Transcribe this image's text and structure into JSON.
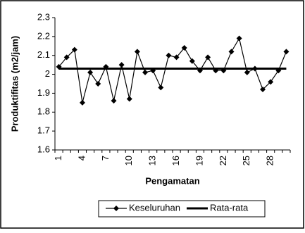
{
  "chart_data": {
    "type": "line",
    "y_label": "Produktifitas (m2/jam)",
    "x_label": "Pengamatan",
    "categories": [
      "1",
      null,
      null,
      "4",
      null,
      null,
      "7",
      null,
      null,
      "10",
      null,
      null,
      "13",
      null,
      null,
      "16",
      null,
      null,
      "19",
      null,
      null,
      "22",
      null,
      null,
      "25",
      null,
      null,
      "28",
      null,
      null
    ],
    "series": [
      {
        "name": "Keseluruhan",
        "color": "#000000",
        "marker": "diamond",
        "values": [
          2.04,
          2.09,
          2.13,
          1.85,
          2.01,
          1.95,
          2.04,
          1.86,
          2.05,
          1.87,
          2.12,
          2.01,
          2.02,
          1.93,
          2.1,
          2.09,
          2.14,
          2.07,
          2.02,
          2.09,
          2.02,
          2.02,
          2.12,
          2.19,
          2.01,
          2.03,
          1.92,
          1.96,
          2.02,
          2.12
        ]
      },
      {
        "name": "Rata-rata",
        "color": "#000000",
        "values": [
          2.03,
          2.03,
          2.03,
          2.03,
          2.03,
          2.03,
          2.03,
          2.03,
          2.03,
          2.03,
          2.03,
          2.03,
          2.03,
          2.03,
          2.03,
          2.03,
          2.03,
          2.03,
          2.03,
          2.03,
          2.03,
          2.03,
          2.03,
          2.03,
          2.03,
          2.03,
          2.03,
          2.03,
          2.03,
          2.03
        ]
      }
    ],
    "ylim": [
      1.6,
      2.3
    ],
    "yticks": [
      1.6,
      1.7,
      1.8,
      1.9,
      2,
      2.1,
      2.2,
      2.3
    ],
    "grid": false,
    "legend": "bottom"
  }
}
